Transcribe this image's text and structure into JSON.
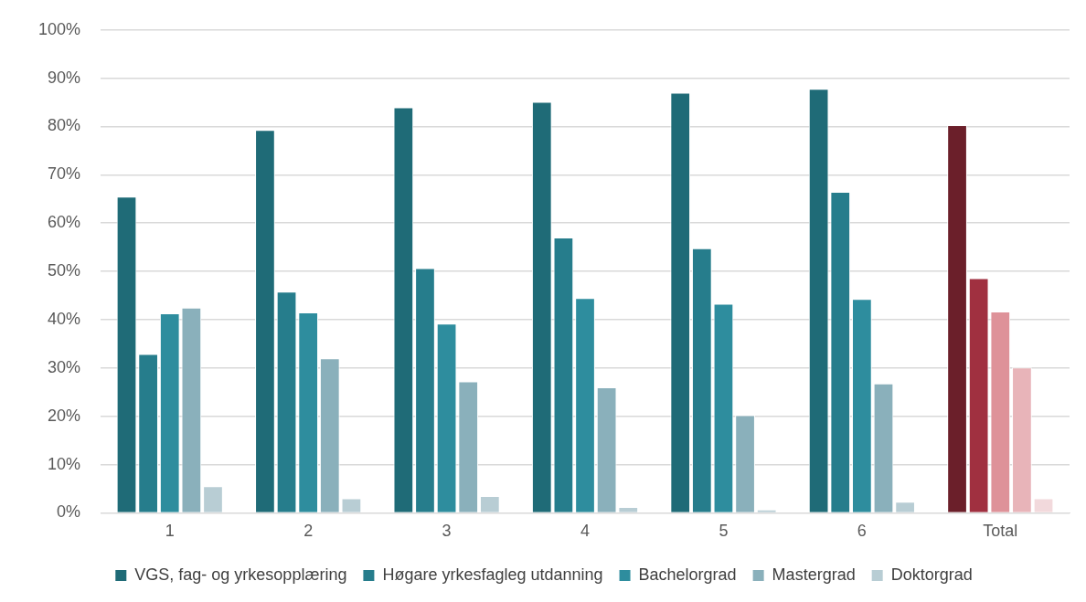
{
  "chart_data": {
    "type": "bar",
    "categories": [
      "1",
      "2",
      "3",
      "4",
      "5",
      "6",
      "Total"
    ],
    "series": [
      {
        "name": "VGS, fag- og yrkesopplæring",
        "color": "#1f6b77",
        "colors": [
          "#1f6b77",
          "#1f6b77",
          "#1f6b77",
          "#1f6b77",
          "#1f6b77",
          "#1f6b77",
          "#6b1f2a"
        ],
        "values": [
          65.5,
          79.3,
          84.0,
          85.1,
          87.0,
          87.8,
          80.3
        ]
      },
      {
        "name": "Høgare yrkesfagleg utdanning",
        "color": "#267d8c",
        "colors": [
          "#267d8c",
          "#267d8c",
          "#267d8c",
          "#267d8c",
          "#267d8c",
          "#267d8c",
          "#a03040"
        ],
        "values": [
          32.9,
          45.8,
          50.7,
          57.0,
          54.8,
          66.5,
          48.6
        ]
      },
      {
        "name": "Bachelorgrad",
        "color": "#2e8d9e",
        "colors": [
          "#2e8d9e",
          "#2e8d9e",
          "#2e8d9e",
          "#2e8d9e",
          "#2e8d9e",
          "#2e8d9e",
          "#de9299"
        ],
        "values": [
          41.3,
          41.5,
          39.2,
          44.5,
          43.3,
          44.3,
          41.7
        ]
      },
      {
        "name": "Mastergrad",
        "color": "#8ab0bb",
        "colors": [
          "#8ab0bb",
          "#8ab0bb",
          "#8ab0bb",
          "#8ab0bb",
          "#8ab0bb",
          "#8ab0bb",
          "#e8b4b9"
        ],
        "values": [
          42.5,
          32.0,
          27.2,
          26.0,
          20.2,
          26.8,
          30.1
        ]
      },
      {
        "name": "Doktorgrad",
        "color": "#b8cdd4",
        "colors": [
          "#b8cdd4",
          "#b8cdd4",
          "#b8cdd4",
          "#b8cdd4",
          "#b8cdd4",
          "#b8cdd4",
          "#f2d9dc"
        ],
        "values": [
          5.5,
          3.0,
          3.5,
          1.2,
          0.7,
          2.3,
          3.0
        ]
      }
    ],
    "ylim": [
      0,
      100
    ],
    "yticks": [
      {
        "value": 0,
        "label": "0%"
      },
      {
        "value": 10,
        "label": "10%"
      },
      {
        "value": 20,
        "label": "20%"
      },
      {
        "value": 30,
        "label": "30%"
      },
      {
        "value": 40,
        "label": "40%"
      },
      {
        "value": 50,
        "label": "50%"
      },
      {
        "value": 60,
        "label": "60%"
      },
      {
        "value": 70,
        "label": "70%"
      },
      {
        "value": 80,
        "label": "80%"
      },
      {
        "value": 90,
        "label": "90%"
      },
      {
        "value": 100,
        "label": "100%"
      }
    ],
    "grid": "y",
    "legend": "bottom"
  }
}
